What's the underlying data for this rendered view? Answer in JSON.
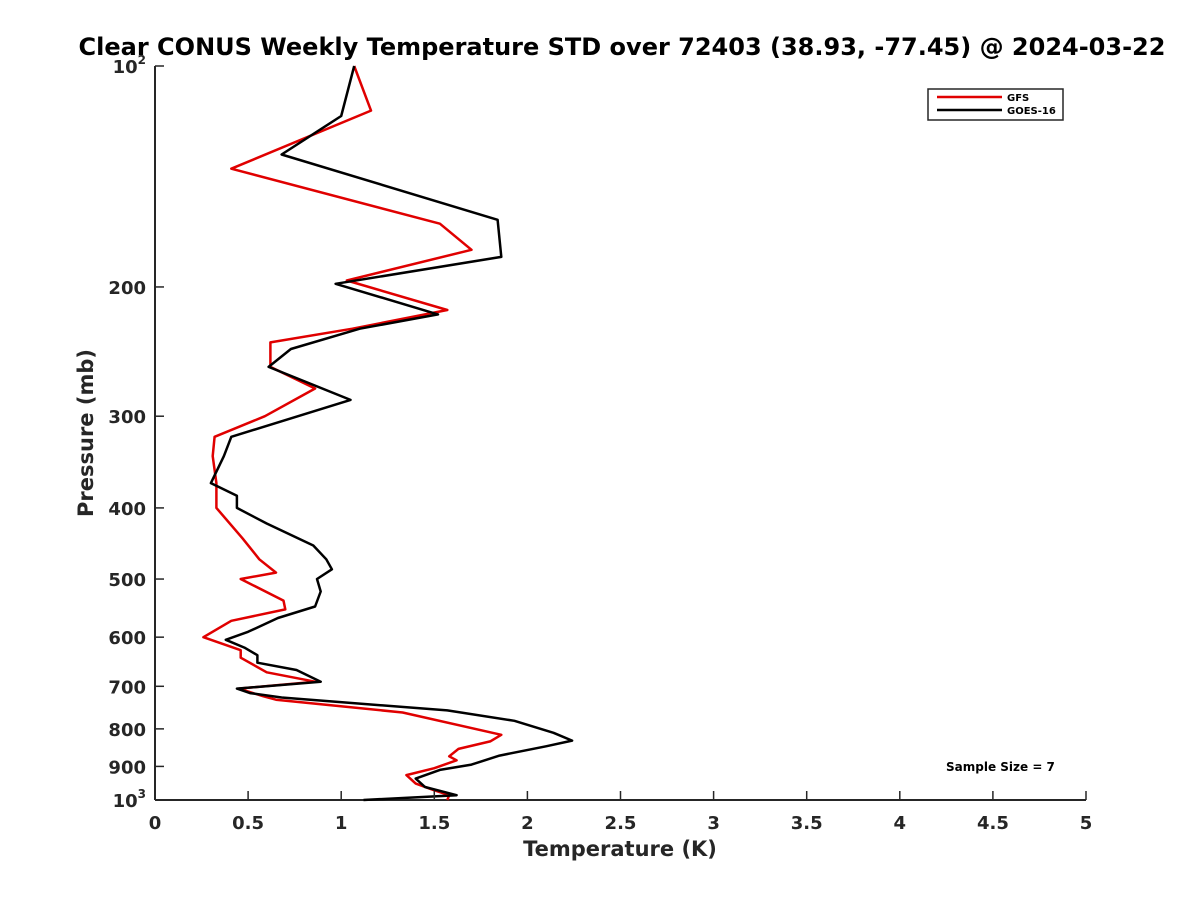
{
  "chart_data": {
    "type": "line",
    "title": "Clear CONUS Weekly Temperature STD over 72403 (38.93, -77.45) @ 2024-03-22",
    "xlabel": "Temperature (K)",
    "ylabel": "Pressure (mb)",
    "xlim": [
      0,
      5
    ],
    "ylim": [
      100,
      1000
    ],
    "y_scale": "log",
    "y_reversed": true,
    "grid": false,
    "legend_position": "top-right",
    "x_ticks": [
      0,
      0.5,
      1,
      1.5,
      2,
      2.5,
      3,
      3.5,
      4,
      4.5,
      5
    ],
    "x_tick_labels": [
      "0",
      "0.5",
      "1",
      "1.5",
      "2",
      "2.5",
      "3",
      "3.5",
      "4",
      "4.5",
      "5"
    ],
    "y_ticks": [
      {
        "value": 100,
        "base": "10",
        "exp": "2"
      },
      {
        "value": 200,
        "label": "200"
      },
      {
        "value": 300,
        "label": "300"
      },
      {
        "value": 400,
        "label": "400"
      },
      {
        "value": 500,
        "label": "500"
      },
      {
        "value": 600,
        "label": "600"
      },
      {
        "value": 700,
        "label": "700"
      },
      {
        "value": 800,
        "label": "800"
      },
      {
        "value": 900,
        "label": "900"
      },
      {
        "value": 1000,
        "base": "10",
        "exp": "3"
      }
    ],
    "annotation": "Sample Size = 7",
    "series": [
      {
        "name": "GFS",
        "color": "#e00000",
        "points": [
          [
            1.07,
            100
          ],
          [
            1.16,
            115
          ],
          [
            0.41,
            138
          ],
          [
            1.53,
            164
          ],
          [
            1.7,
            178
          ],
          [
            1.03,
            196
          ],
          [
            1.57,
            215
          ],
          [
            1.06,
            228
          ],
          [
            0.62,
            238
          ],
          [
            0.62,
            257
          ],
          [
            0.86,
            275
          ],
          [
            0.59,
            300
          ],
          [
            0.32,
            320
          ],
          [
            0.31,
            340
          ],
          [
            0.33,
            370
          ],
          [
            0.33,
            400
          ],
          [
            0.47,
            440
          ],
          [
            0.56,
            470
          ],
          [
            0.65,
            490
          ],
          [
            0.46,
            500
          ],
          [
            0.69,
            535
          ],
          [
            0.7,
            550
          ],
          [
            0.41,
            570
          ],
          [
            0.26,
            600
          ],
          [
            0.46,
            625
          ],
          [
            0.46,
            640
          ],
          [
            0.6,
            670
          ],
          [
            0.86,
            690
          ],
          [
            0.45,
            705
          ],
          [
            0.58,
            722
          ],
          [
            0.65,
            730
          ],
          [
            1.33,
            760
          ],
          [
            1.86,
            815
          ],
          [
            1.8,
            832
          ],
          [
            1.63,
            852
          ],
          [
            1.58,
            872
          ],
          [
            1.62,
            883
          ],
          [
            1.5,
            905
          ],
          [
            1.35,
            925
          ],
          [
            1.4,
            950
          ],
          [
            1.5,
            970
          ],
          [
            1.58,
            985
          ],
          [
            1.57,
            1000
          ]
        ]
      },
      {
        "name": "GOES-16",
        "color": "#000000",
        "points": [
          [
            1.07,
            100
          ],
          [
            1.0,
            117
          ],
          [
            0.68,
            132
          ],
          [
            1.84,
            162
          ],
          [
            1.86,
            182
          ],
          [
            0.97,
            198
          ],
          [
            1.52,
            218
          ],
          [
            1.1,
            228
          ],
          [
            0.73,
            243
          ],
          [
            0.61,
            257
          ],
          [
            1.05,
            285
          ],
          [
            0.41,
            320
          ],
          [
            0.37,
            340
          ],
          [
            0.3,
            370
          ],
          [
            0.44,
            385
          ],
          [
            0.44,
            400
          ],
          [
            0.6,
            420
          ],
          [
            0.85,
            450
          ],
          [
            0.92,
            470
          ],
          [
            0.95,
            485
          ],
          [
            0.87,
            500
          ],
          [
            0.89,
            520
          ],
          [
            0.86,
            545
          ],
          [
            0.66,
            565
          ],
          [
            0.5,
            590
          ],
          [
            0.38,
            605
          ],
          [
            0.48,
            620
          ],
          [
            0.55,
            635
          ],
          [
            0.55,
            650
          ],
          [
            0.76,
            665
          ],
          [
            0.89,
            690
          ],
          [
            0.44,
            705
          ],
          [
            0.51,
            715
          ],
          [
            0.68,
            725
          ],
          [
            1.57,
            755
          ],
          [
            1.93,
            780
          ],
          [
            2.14,
            810
          ],
          [
            2.24,
            830
          ],
          [
            2.1,
            845
          ],
          [
            1.85,
            870
          ],
          [
            1.7,
            895
          ],
          [
            1.53,
            910
          ],
          [
            1.4,
            935
          ],
          [
            1.45,
            960
          ],
          [
            1.62,
            985
          ],
          [
            1.12,
            1000
          ]
        ]
      }
    ]
  }
}
